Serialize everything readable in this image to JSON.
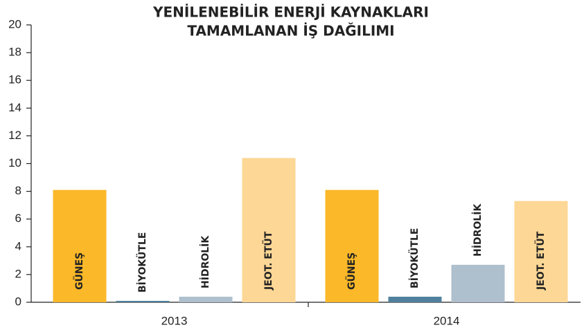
{
  "chart_data": {
    "type": "bar",
    "title": [
      "YENİLENEBİLİR ENERJİ KAYNAKLARI",
      "TAMAMLANAN İŞ DAĞILIMI"
    ],
    "categories": [
      "2013",
      "2014"
    ],
    "series": [
      {
        "name": "GÜNEŞ",
        "color": "#fbb829",
        "values": [
          8.1,
          8.1
        ]
      },
      {
        "name": "BİYOKÜTLE",
        "color": "#4f819c",
        "values": [
          0.1,
          0.4
        ]
      },
      {
        "name": "HİDROLİK",
        "color": "#aebfcd",
        "values": [
          0.4,
          2.7
        ]
      },
      {
        "name": "JEOT. ETÜT",
        "color": "#fdd795",
        "values": [
          10.4,
          7.3
        ]
      }
    ],
    "ylim": [
      0,
      20
    ],
    "yticks": [
      0,
      2,
      4,
      6,
      8,
      10,
      12,
      14,
      16,
      18,
      20
    ],
    "grid": false
  }
}
